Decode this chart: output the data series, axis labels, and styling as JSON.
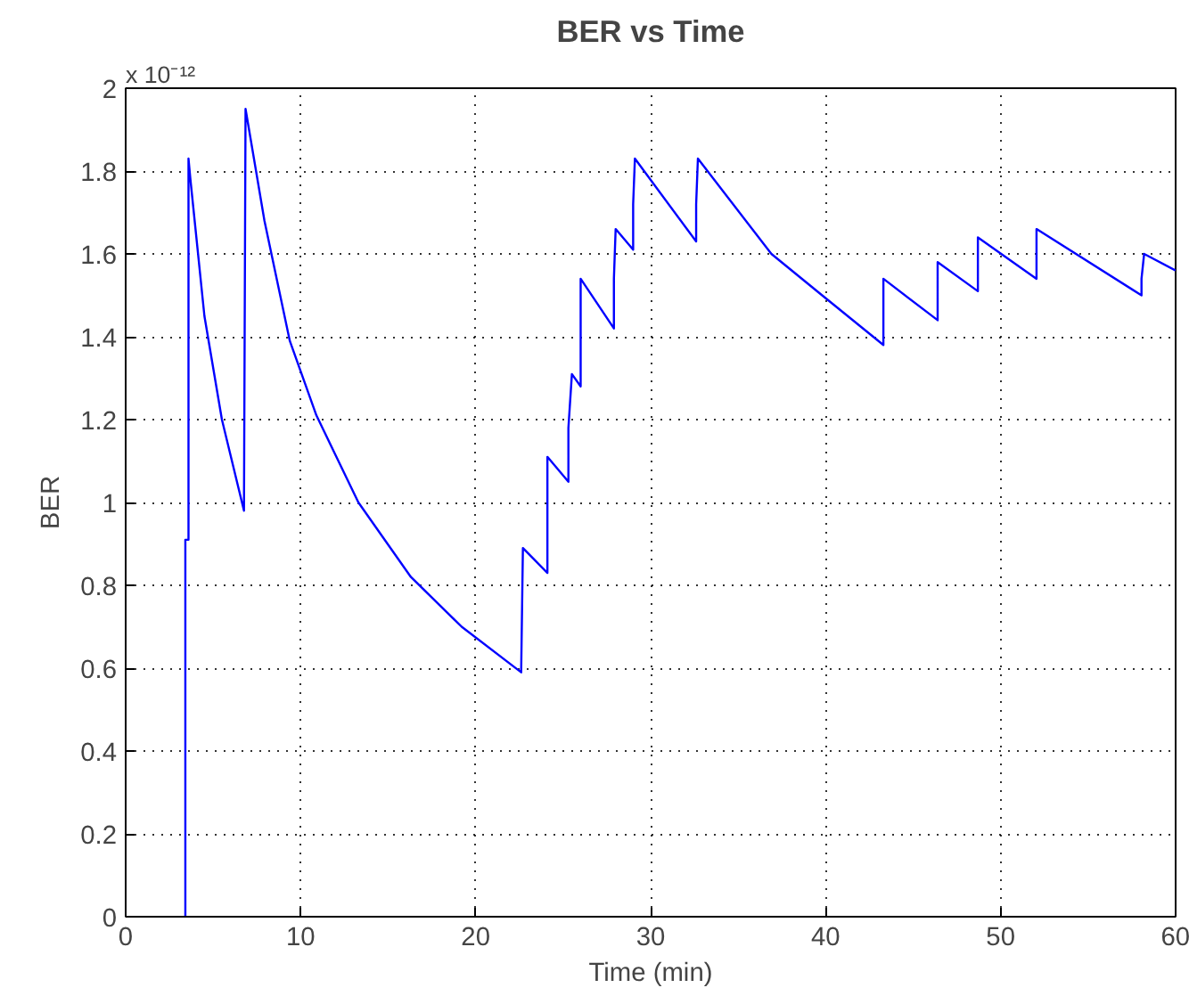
{
  "chart_data": {
    "type": "line",
    "title": "BER vs Time",
    "xlabel": "Time (min)",
    "ylabel": "BER",
    "annotations": [
      "x 10⁻¹²"
    ],
    "xlim": [
      0,
      60
    ],
    "xticks": [
      0,
      10,
      20,
      30,
      40,
      50,
      60
    ],
    "ylim": [
      0,
      2
    ],
    "yticks": [
      0,
      0.2,
      0.4,
      0.6,
      0.8,
      1,
      1.2,
      1.4,
      1.6,
      1.8,
      2
    ],
    "grid": true,
    "marker": "none",
    "line_style": "solid",
    "series": [
      {
        "color": "#0000ff",
        "x": [
          3.41,
          3.41,
          3.59,
          3.59,
          3.7,
          4.5,
          5.5,
          6.76,
          6.85,
          7.93,
          9.38,
          10.9,
          13.3,
          16.3,
          19.2,
          22.6,
          22.7,
          24.1,
          24.1,
          25.3,
          25.3,
          25.5,
          26.0,
          26.0,
          27.9,
          27.9,
          28.0,
          29.0,
          29.0,
          29.1,
          32.6,
          32.6,
          32.7,
          36.9,
          39.8,
          43.3,
          43.3,
          46.4,
          46.4,
          48.7,
          48.7,
          52.05,
          52.05,
          58.05,
          58.05,
          58.2,
          60
        ],
        "values": [
          0,
          0.91,
          0.91,
          1.83,
          1.78,
          1.45,
          1.2,
          0.98,
          1.95,
          1.68,
          1.39,
          1.21,
          1.0,
          0.82,
          0.7,
          0.59,
          0.89,
          0.83,
          1.11,
          1.05,
          1.18,
          1.31,
          1.28,
          1.54,
          1.42,
          1.54,
          1.66,
          1.61,
          1.72,
          1.83,
          1.63,
          1.72,
          1.83,
          1.6,
          1.5,
          1.38,
          1.54,
          1.44,
          1.58,
          1.51,
          1.64,
          1.54,
          1.66,
          1.5,
          1.54,
          1.6,
          1.56
        ]
      }
    ]
  }
}
